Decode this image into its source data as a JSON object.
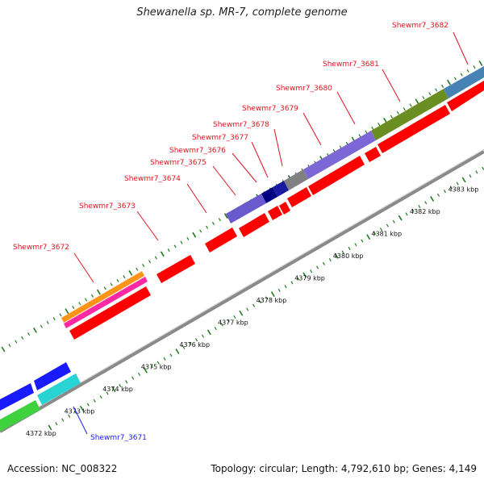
{
  "title": "Shewanella sp. MR-7, complete genome",
  "footer": {
    "accession": "Accession: NC_008322",
    "summary": "Topology: circular; Length: 4,792,610 bp; Genes: 4,149"
  },
  "colors": {
    "forward_gene": "#ff0000",
    "highlight_gene": "#1a1aff",
    "label_red": "#e0141e",
    "label_blue": "#1a1aff",
    "tick": "#1e7a1e",
    "backbone": "#8a8a8a"
  },
  "scale": {
    "unit": "kbp",
    "labels": [
      "4372 kbp",
      "4373 kbp",
      "4374 kbp",
      "4375 kbp",
      "4376 kbp",
      "4377 kbp",
      "4378 kbp",
      "4379 kbp",
      "4380 kbp",
      "4381 kbp",
      "4382 kbp",
      "4383 kbp"
    ]
  },
  "genes": [
    {
      "name": "Shewmr7_3671",
      "highlight": true
    },
    {
      "name": "Shewmr7_3672"
    },
    {
      "name": "Shewmr7_3673"
    },
    {
      "name": "Shewmr7_3674"
    },
    {
      "name": "Shewmr7_3675"
    },
    {
      "name": "Shewmr7_3676"
    },
    {
      "name": "Shewmr7_3677"
    },
    {
      "name": "Shewmr7_3678"
    },
    {
      "name": "Shewmr7_3679"
    },
    {
      "name": "Shewmr7_3680"
    },
    {
      "name": "Shewmr7_3681"
    },
    {
      "name": "Shewmr7_3682"
    }
  ]
}
